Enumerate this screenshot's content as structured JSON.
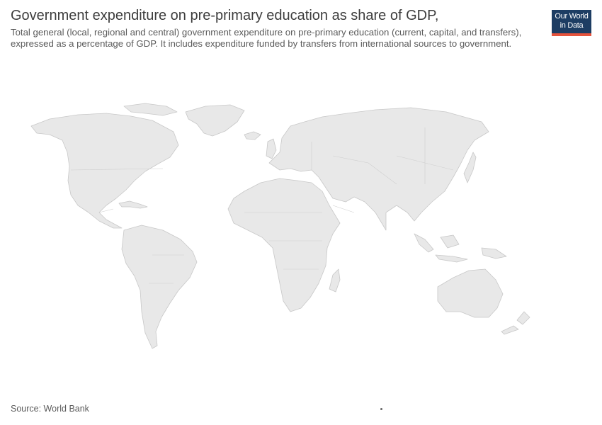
{
  "header": {
    "title": "Government expenditure on pre-primary education as share of GDP,",
    "subtitle": "Total general (local, regional and central) government expenditure on pre-primary education (current, capital, and transfers), expressed as a percentage of GDP. It includes expenditure funded by transfers from international sources to government."
  },
  "logo": {
    "line1": "Our World",
    "line2": "in Data"
  },
  "footer": {
    "source": "Source: World Bank"
  },
  "map": {
    "fill_color": "#e8e8e8",
    "border_color": "#c8c8c8",
    "data_state": "no data shown"
  }
}
